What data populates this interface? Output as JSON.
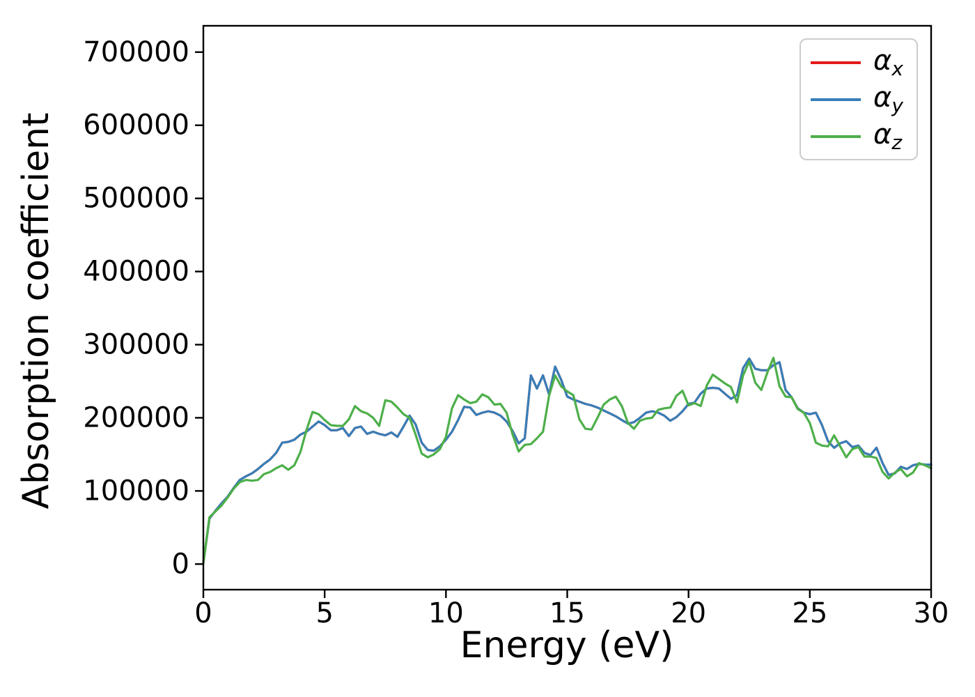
{
  "figure": {
    "xlabel": "Energy (eV)",
    "ylabel": "Absorption coefficient",
    "x_ticks": [
      0,
      5,
      10,
      15,
      20,
      25,
      30
    ],
    "y_ticks": [
      0,
      100000,
      200000,
      300000,
      400000,
      500000,
      600000,
      700000
    ],
    "background": "#ffffff",
    "spine_color": "#000000"
  },
  "legend": {
    "position": "upper right",
    "items": [
      {
        "symbol": "α",
        "sub": "x",
        "color": "#e41a1c"
      },
      {
        "symbol": "α",
        "sub": "y",
        "color": "#377eb8"
      },
      {
        "symbol": "α",
        "sub": "z",
        "color": "#4daf4a"
      }
    ]
  },
  "chart_data": {
    "type": "line",
    "title": "",
    "xlabel": "Energy (eV)",
    "ylabel": "Absorption coefficient",
    "xlim": [
      0,
      30
    ],
    "ylim": [
      -35000,
      736000
    ],
    "grid": false,
    "legend_position": "upper right",
    "x_start": 0,
    "x_step": 0.25,
    "series": [
      {
        "name": "alpha_x",
        "label": "α_x",
        "color": "#e41a1c",
        "values": [
          2000,
          62000,
          73000,
          83000,
          92000,
          104000,
          115000,
          120000,
          124000,
          130000,
          137000,
          143000,
          152000,
          166000,
          167000,
          170000,
          177000,
          181000,
          188000,
          195000,
          190000,
          183000,
          183000,
          186000,
          175000,
          186000,
          188000,
          178000,
          181000,
          178000,
          176000,
          180000,
          174000,
          188000,
          203000,
          191000,
          166000,
          156000,
          155000,
          161000,
          170000,
          181000,
          197000,
          215000,
          214000,
          204000,
          207000,
          209000,
          207000,
          203000,
          195000,
          182000,
          165000,
          172000,
          258000,
          240000,
          258000,
          232000,
          270000,
          252000,
          229000,
          225000,
          222000,
          219000,
          217000,
          214000,
          210000,
          206000,
          202000,
          197000,
          192000,
          194000,
          200000,
          207000,
          209000,
          207000,
          203000,
          196000,
          201000,
          209000,
          219000,
          221000,
          233000,
          240000,
          241000,
          240000,
          233000,
          226000,
          231000,
          268000,
          281000,
          267000,
          265000,
          265000,
          272000,
          276000,
          238000,
          228000,
          213000,
          207000,
          205000,
          207000,
          190000,
          168000,
          159000,
          165000,
          168000,
          160000,
          162000,
          152000,
          149000,
          159000,
          138000,
          122000,
          124000,
          133000,
          130000,
          135000,
          137000,
          136000,
          136000
        ]
      },
      {
        "name": "alpha_y",
        "label": "α_y",
        "color": "#377eb8",
        "values": [
          2000,
          62000,
          73000,
          83000,
          92000,
          104000,
          115000,
          120000,
          124000,
          130000,
          137000,
          143000,
          152000,
          166000,
          167000,
          170000,
          177000,
          181000,
          188000,
          195000,
          190000,
          183000,
          183000,
          186000,
          175000,
          186000,
          188000,
          178000,
          181000,
          178000,
          176000,
          180000,
          174000,
          188000,
          203000,
          191000,
          166000,
          156000,
          155000,
          161000,
          170000,
          181000,
          197000,
          215000,
          214000,
          204000,
          207000,
          209000,
          207000,
          203000,
          195000,
          182000,
          165000,
          172000,
          258000,
          240000,
          258000,
          232000,
          270000,
          252000,
          229000,
          225000,
          222000,
          219000,
          217000,
          214000,
          210000,
          206000,
          202000,
          197000,
          192000,
          194000,
          200000,
          207000,
          209000,
          207000,
          203000,
          196000,
          201000,
          209000,
          219000,
          221000,
          233000,
          240000,
          241000,
          240000,
          233000,
          226000,
          231000,
          268000,
          281000,
          267000,
          265000,
          265000,
          272000,
          276000,
          238000,
          228000,
          213000,
          207000,
          205000,
          207000,
          190000,
          168000,
          159000,
          165000,
          168000,
          160000,
          162000,
          152000,
          149000,
          159000,
          138000,
          122000,
          124000,
          133000,
          130000,
          135000,
          137000,
          136000,
          136000
        ]
      },
      {
        "name": "alpha_z",
        "label": "α_z",
        "color": "#4daf4a",
        "values": [
          1000,
          64000,
          72000,
          80000,
          91000,
          103000,
          112000,
          115000,
          114000,
          115000,
          123000,
          126000,
          131000,
          135000,
          129000,
          135000,
          153000,
          183000,
          208000,
          205000,
          197000,
          190000,
          189000,
          189000,
          198000,
          216000,
          209000,
          206000,
          200000,
          189000,
          224000,
          222000,
          214000,
          205000,
          200000,
          177000,
          151000,
          146000,
          150000,
          157000,
          174000,
          213000,
          231000,
          225000,
          220000,
          222000,
          232000,
          228000,
          218000,
          219000,
          207000,
          177000,
          154000,
          163000,
          164000,
          172000,
          181000,
          230000,
          258000,
          243000,
          236000,
          231000,
          198000,
          185000,
          184000,
          200000,
          218000,
          225000,
          229000,
          216000,
          193000,
          185000,
          196000,
          199000,
          200000,
          211000,
          213000,
          214000,
          230000,
          237000,
          217000,
          220000,
          216000,
          244000,
          259000,
          253000,
          247000,
          242000,
          221000,
          258000,
          277000,
          248000,
          238000,
          262000,
          282000,
          243000,
          229000,
          228000,
          212000,
          207000,
          193000,
          166000,
          162000,
          161000,
          176000,
          161000,
          146000,
          157000,
          160000,
          147000,
          147000,
          145000,
          126000,
          117000,
          125000,
          130000,
          120000,
          125000,
          138000,
          135000,
          131000
        ]
      }
    ]
  }
}
